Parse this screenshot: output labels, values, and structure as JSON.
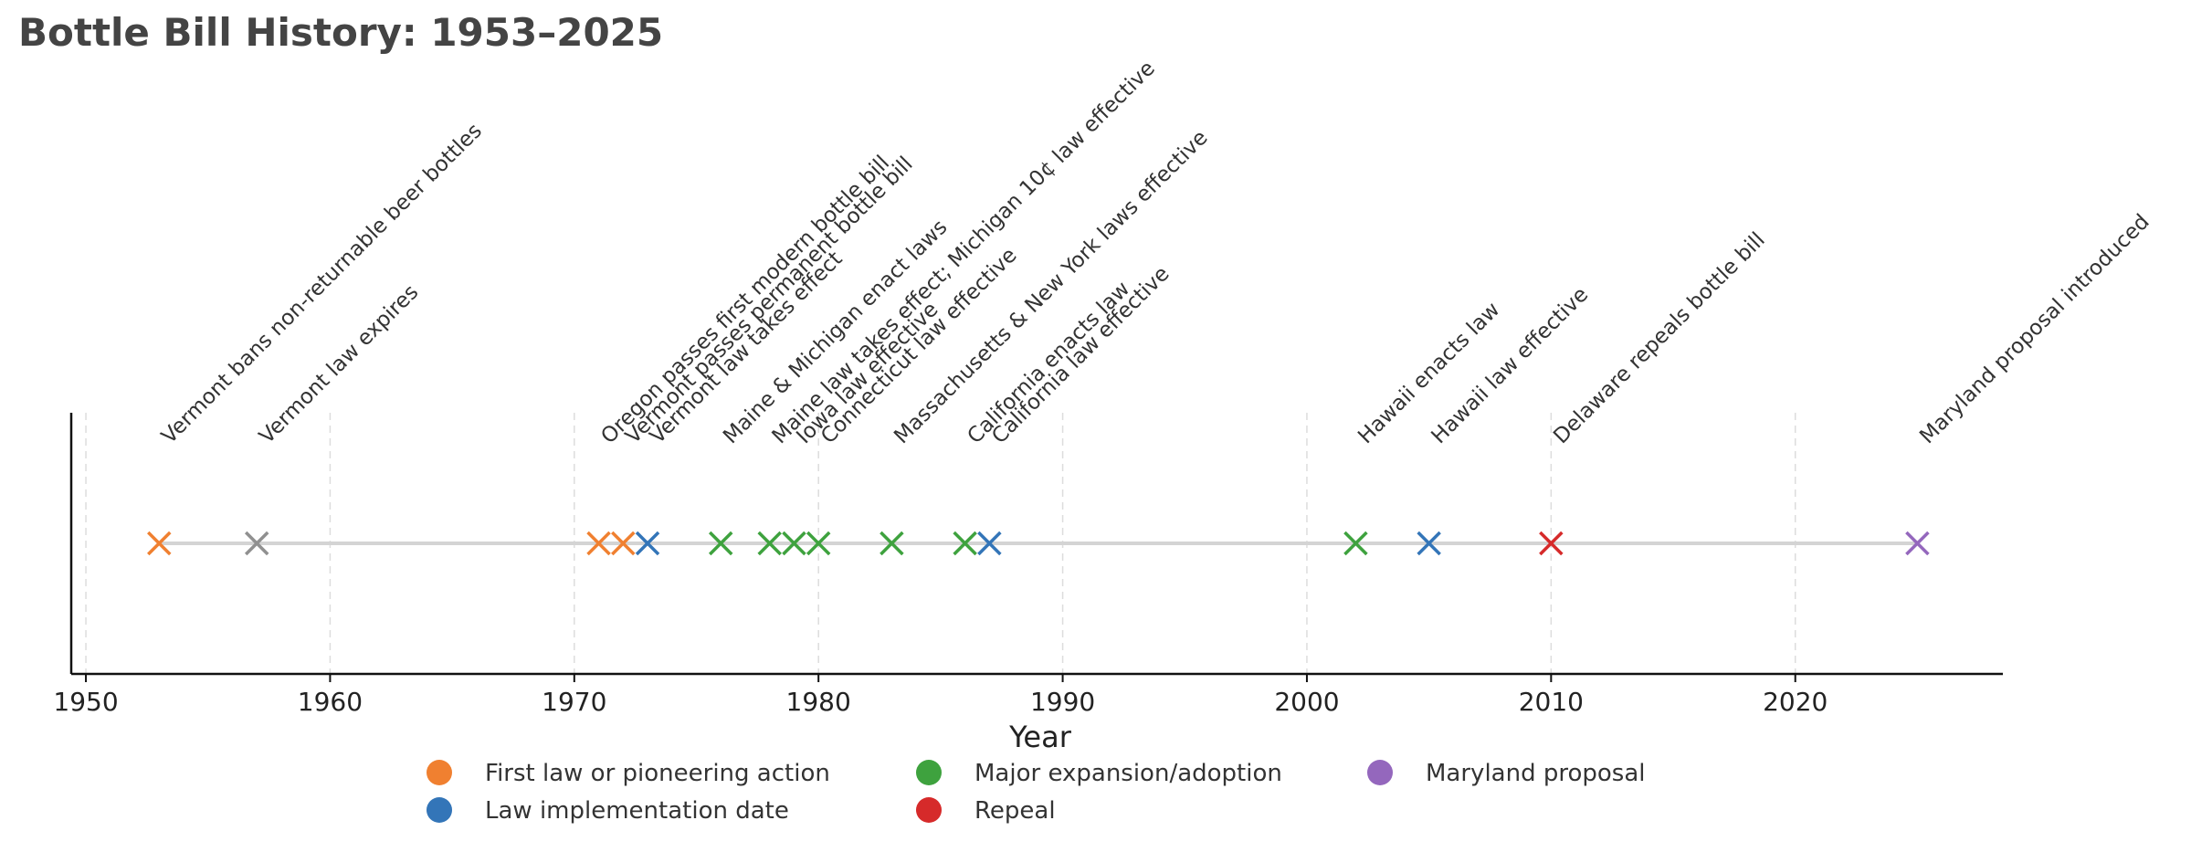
{
  "chart_data": {
    "type": "scatter",
    "title": "Bottle Bill History: 1953–2025",
    "xlabel": "Year",
    "ylabel": "",
    "xlim": [
      1949.4,
      2028.5
    ],
    "xticks": [
      1950,
      1960,
      1970,
      1980,
      1990,
      2000,
      2010,
      2020
    ],
    "grid": "vertical dashed",
    "marker": "x",
    "colors": {
      "pioneer": "#f08030",
      "implementation": "#3375b8",
      "expansion": "#3ea23e",
      "repeal": "#d62a2a",
      "maryland": "#9467bd",
      "other": "#909090",
      "baseline": "#d4d4d4",
      "grid": "#dddddd",
      "axis": "#111111",
      "title": "#444444"
    },
    "events": [
      {
        "year": 1953,
        "label": "Vermont bans non-returnable beer bottles",
        "category": "pioneer"
      },
      {
        "year": 1957,
        "label": "Vermont law expires",
        "category": "other"
      },
      {
        "year": 1971,
        "label": "Oregon passes first modern bottle bill",
        "category": "pioneer"
      },
      {
        "year": 1972,
        "label": "Vermont passes permanent bottle bill",
        "category": "pioneer"
      },
      {
        "year": 1973,
        "label": "Vermont law takes effect",
        "category": "implementation"
      },
      {
        "year": 1976,
        "label": "Maine & Michigan enact laws",
        "category": "expansion"
      },
      {
        "year": 1978,
        "label": "Maine law takes effect; Michigan 10¢ law effective",
        "category": "expansion"
      },
      {
        "year": 1979,
        "label": "Iowa law effective",
        "category": "expansion"
      },
      {
        "year": 1980,
        "label": "Connecticut law effective",
        "category": "expansion"
      },
      {
        "year": 1983,
        "label": "Massachusetts & New York laws effective",
        "category": "expansion"
      },
      {
        "year": 1986,
        "label": "California enacts law",
        "category": "expansion"
      },
      {
        "year": 1987,
        "label": "California law effective",
        "category": "implementation"
      },
      {
        "year": 2002,
        "label": "Hawaii enacts law",
        "category": "expansion"
      },
      {
        "year": 2005,
        "label": "Hawaii law effective",
        "category": "implementation"
      },
      {
        "year": 2010,
        "label": "Delaware repeals bottle bill",
        "category": "repeal"
      },
      {
        "year": 2025,
        "label": "Maryland proposal introduced",
        "category": "maryland"
      }
    ],
    "legend": {
      "placement": "bottom-center",
      "entries": [
        {
          "label": "First law or pioneering action",
          "category": "pioneer"
        },
        {
          "label": "Law implementation date",
          "category": "implementation"
        },
        {
          "label": "Major expansion/adoption",
          "category": "expansion"
        },
        {
          "label": "Repeal",
          "category": "repeal"
        },
        {
          "label": "Maryland proposal",
          "category": "maryland"
        }
      ]
    }
  }
}
